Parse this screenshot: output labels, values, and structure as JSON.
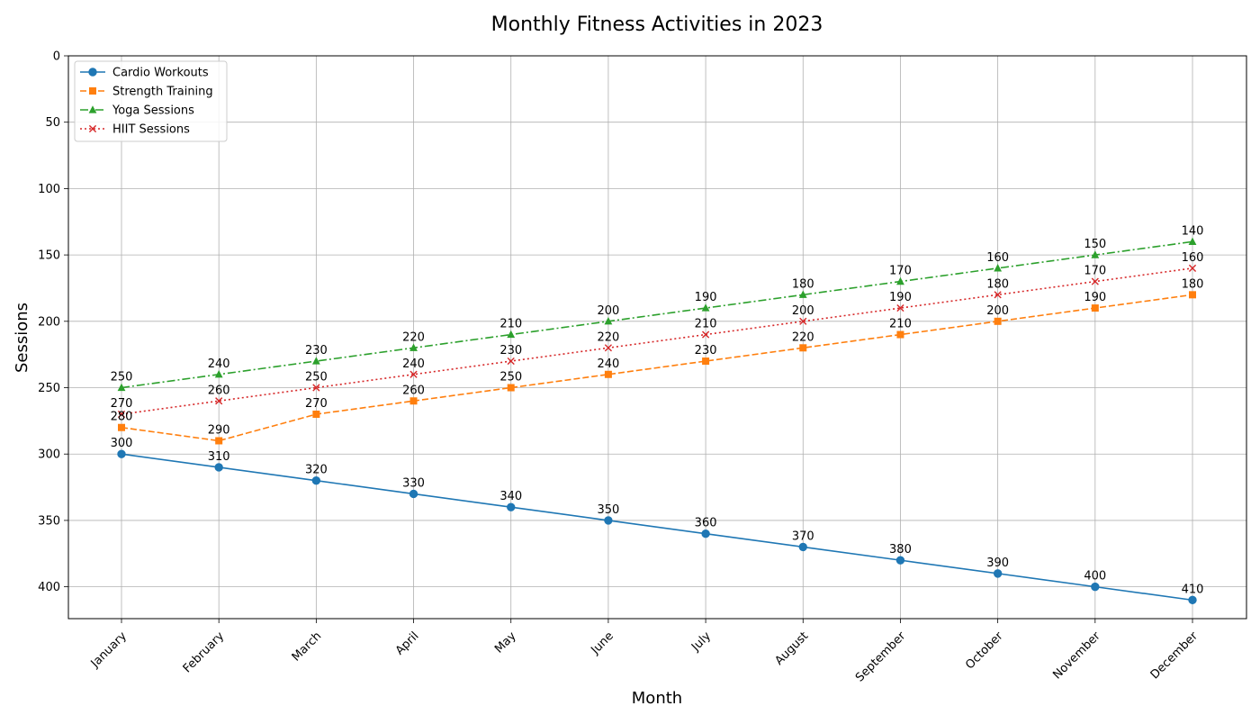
{
  "chart_data": {
    "type": "line",
    "title": "Monthly Fitness Activities in 2023",
    "xlabel": "Month",
    "ylabel": "Sessions",
    "categories": [
      "January",
      "February",
      "March",
      "April",
      "May",
      "June",
      "July",
      "August",
      "September",
      "October",
      "November",
      "December"
    ],
    "ylim": [
      424,
      0
    ],
    "y_inverted": true,
    "yticks": [
      0,
      50,
      100,
      150,
      200,
      250,
      300,
      350,
      400
    ],
    "grid": true,
    "legend_position": "top-left",
    "series": [
      {
        "name": "Cardio Workouts",
        "values": [
          300,
          310,
          320,
          330,
          340,
          350,
          360,
          370,
          380,
          390,
          400,
          410
        ],
        "color": "#1f77b4",
        "marker": "circle",
        "linestyle": "solid"
      },
      {
        "name": "Strength Training",
        "values": [
          280,
          290,
          270,
          260,
          250,
          240,
          230,
          220,
          210,
          200,
          190,
          180
        ],
        "color": "#ff7f0e",
        "marker": "square",
        "linestyle": "dashed"
      },
      {
        "name": "Yoga Sessions",
        "values": [
          250,
          240,
          230,
          220,
          210,
          200,
          190,
          180,
          170,
          160,
          150,
          140
        ],
        "color": "#2ca02c",
        "marker": "triangle",
        "linestyle": "dashdot"
      },
      {
        "name": "HIIT Sessions",
        "values": [
          270,
          260,
          250,
          240,
          230,
          220,
          210,
          200,
          190,
          180,
          170,
          160
        ],
        "color": "#d62728",
        "marker": "x",
        "linestyle": "dotted"
      }
    ]
  }
}
